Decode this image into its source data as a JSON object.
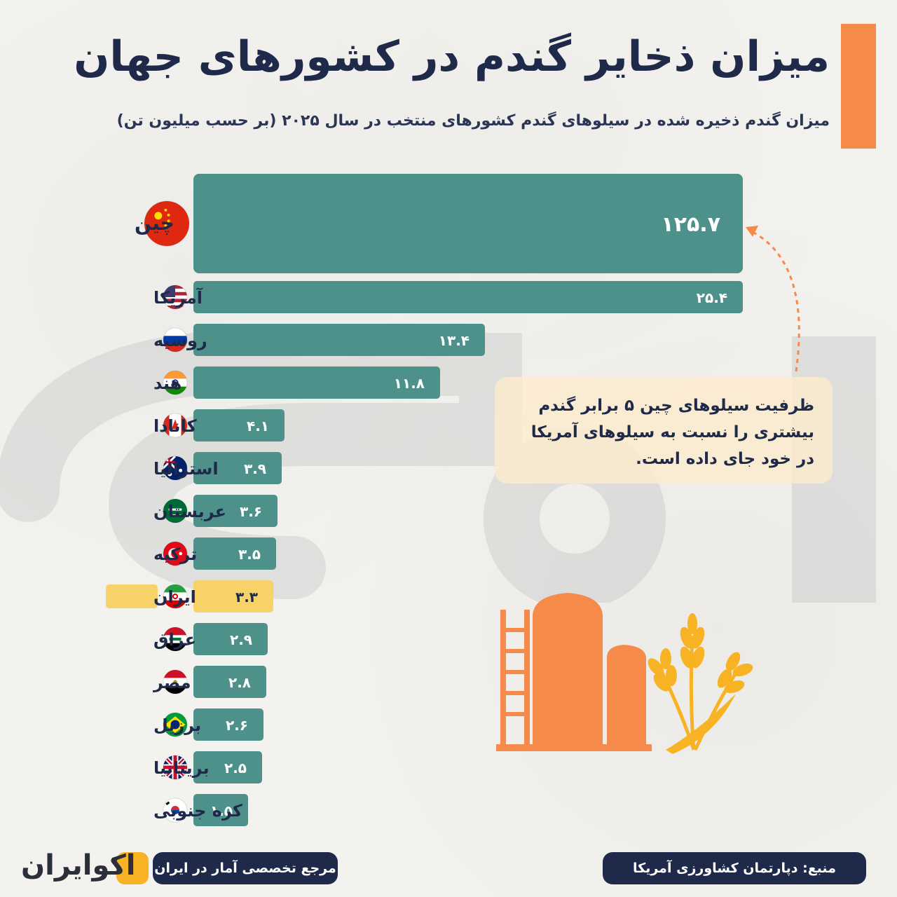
{
  "header": {
    "title": "میزان ذخایر گندم در کشورهای جهان",
    "subtitle": "میزان گندم ذخیره شده در سیلوهای گندم کشورهای منتخب در سال ۲۰۲۵ (بر حسب میلیون تن)"
  },
  "colors": {
    "bar": "#4d918a",
    "highlight_bar": "#f7d269",
    "highlight_label_bg": "#f7d269",
    "accent": "#f58a4a",
    "navy": "#1f2a4a"
  },
  "chart_data": {
    "type": "bar",
    "orientation": "horizontal",
    "title": "میزان ذخایر گندم در کشورهای جهان",
    "subtitle": "میزان گندم ذخیره شده در سیلوهای گندم کشورهای منتخب در سال ۲۰۲۵ (بر حسب میلیون تن)",
    "unit": "میلیون تن",
    "scale_note": "bar lengths are not proportional; the China bar is visually truncated",
    "categories": [
      "چین",
      "آمریکا",
      "روسیه",
      "هند",
      "کانادا",
      "استرالیا",
      "عربستان",
      "ترکیه",
      "ایران",
      "عراق",
      "مصر",
      "برزیل",
      "بریتانیا",
      "کره جنوبی"
    ],
    "values": [
      125.7,
      25.4,
      13.4,
      11.8,
      4.1,
      3.9,
      3.6,
      3.5,
      3.3,
      2.9,
      2.8,
      2.6,
      2.5,
      1.5
    ],
    "value_labels": [
      "۱۲۵.۷",
      "۲۵.۴",
      "۱۳.۴",
      "۱۱.۸",
      "۴.۱",
      "۳.۹",
      "۳.۶",
      "۳.۵",
      "۳.۳",
      "۲.۹",
      "۲.۸",
      "۲.۶",
      "۲.۵",
      "۱.۵"
    ],
    "flags": [
      "china-flag-icon",
      "usa-flag-icon",
      "russia-flag-icon",
      "india-flag-icon",
      "canada-flag-icon",
      "australia-flag-icon",
      "saudi-flag-icon",
      "turkey-flag-icon",
      "iran-flag-icon",
      "iraq-flag-icon",
      "egypt-flag-icon",
      "brazil-flag-icon",
      "uk-flag-icon",
      "south-korea-flag-icon"
    ],
    "highlight": "ایران",
    "grid": false,
    "legend": "none"
  },
  "callout": {
    "lines": [
      "ظرفیت سیلوهای چین ۵ برابر گندم",
      "بیشتری را نسبت به سیلوهای آمریکا",
      "در خود جای داده است."
    ]
  },
  "footer": {
    "source": "منبع: دپارتمان کشاورزی آمریکا",
    "tagline": "مرجع تخصصی آمار در ایران",
    "logo_text": "اکوایران"
  }
}
